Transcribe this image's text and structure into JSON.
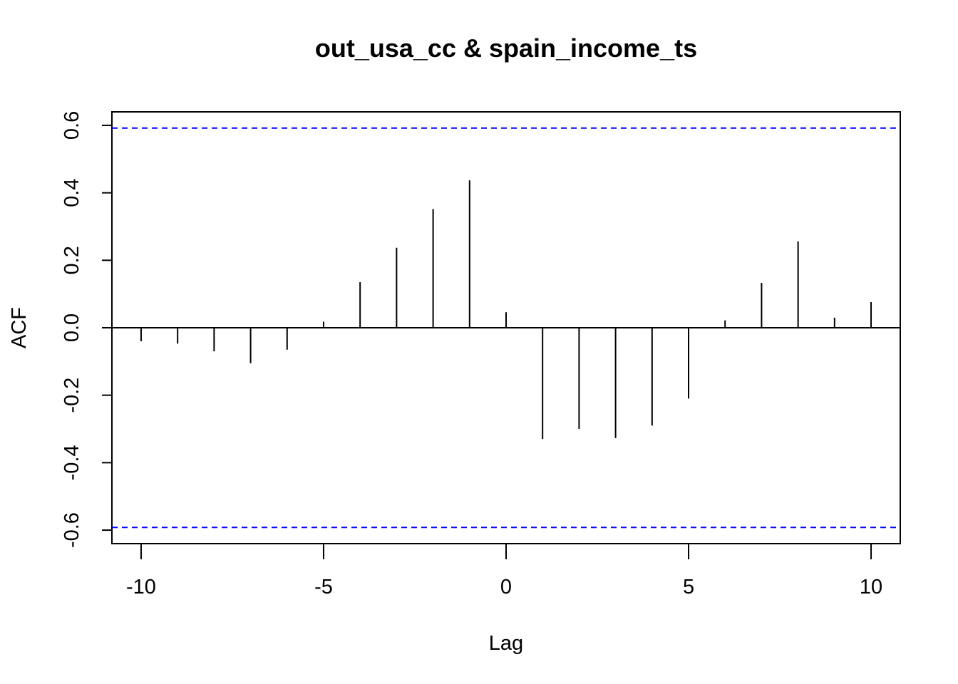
{
  "chart_data": {
    "type": "bar",
    "title": "out_usa_cc & spain_income_ts",
    "xlabel": "Lag",
    "ylabel": "ACF",
    "xlim": [
      -10.8,
      10.8
    ],
    "ylim": [
      -0.64,
      0.64
    ],
    "x_ticks": [
      -10,
      -5,
      0,
      5,
      10
    ],
    "y_ticks": [
      -0.6,
      -0.4,
      -0.2,
      0.0,
      0.2,
      0.4,
      0.6
    ],
    "y_tick_labels": [
      "-0.6",
      "-0.4",
      "-0.2",
      "0.0",
      "0.2",
      "0.4",
      "0.6"
    ],
    "lags": [
      -10,
      -9,
      -8,
      -7,
      -6,
      -5,
      -4,
      -3,
      -2,
      -1,
      0,
      1,
      2,
      3,
      4,
      5,
      6,
      7,
      8,
      9,
      10
    ],
    "values": [
      -0.04,
      -0.047,
      -0.07,
      -0.105,
      -0.065,
      0.018,
      0.135,
      0.237,
      0.352,
      0.437,
      0.046,
      -0.33,
      -0.3,
      -0.327,
      -0.29,
      -0.21,
      0.022,
      0.133,
      0.256,
      0.03,
      0.076
    ],
    "confidence_bound": 0.592,
    "bound_color": "#0000FF",
    "bar_color": "#000000",
    "grid": false
  }
}
